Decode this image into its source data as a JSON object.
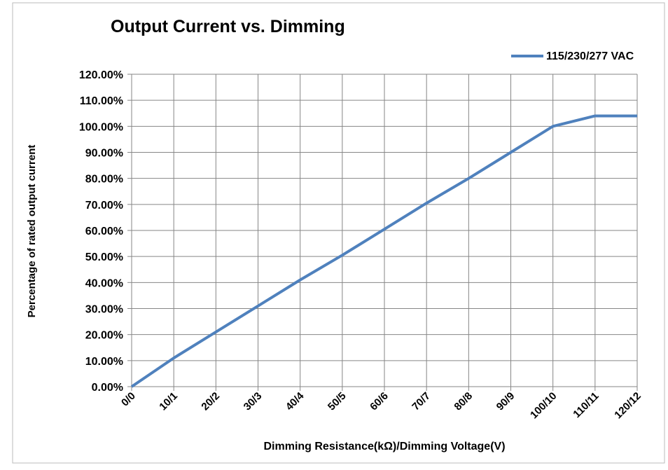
{
  "chart_data": {
    "type": "line",
    "title": "Output Current vs. Dimming",
    "x_label": "Dimming Resistance(kΩ)/Dimming Voltage(V)",
    "y_label": "Percentage of rated output current",
    "categories": [
      "0/0",
      "10/1",
      "20/2",
      "30/3",
      "40/4",
      "50/5",
      "60/6",
      "70/7",
      "80/8",
      "90/9",
      "100/10",
      "110/11",
      "120/12"
    ],
    "series": [
      {
        "name": "115/230/277 VAC",
        "color": "#4f81bd",
        "values": [
          0,
          11,
          21,
          31,
          41,
          50.5,
          60.5,
          70.5,
          80,
          90,
          100,
          104,
          104
        ]
      }
    ],
    "ylim": [
      0,
      120
    ],
    "yticks": [
      {
        "value": 0,
        "label": "0.00%"
      },
      {
        "value": 10,
        "label": "10.00%"
      },
      {
        "value": 20,
        "label": "20.00%"
      },
      {
        "value": 30,
        "label": "30.00%"
      },
      {
        "value": 40,
        "label": "40.00%"
      },
      {
        "value": 50,
        "label": "50.00%"
      },
      {
        "value": 60,
        "label": "60.00%"
      },
      {
        "value": 70,
        "label": "70.00%"
      },
      {
        "value": 80,
        "label": "80.00%"
      },
      {
        "value": 90,
        "label": "90.00%"
      },
      {
        "value": 100,
        "label": "100.00%"
      },
      {
        "value": 110,
        "label": "110.00%"
      },
      {
        "value": 120,
        "label": "120.00%"
      }
    ],
    "grid": true,
    "legend": "top-right"
  }
}
